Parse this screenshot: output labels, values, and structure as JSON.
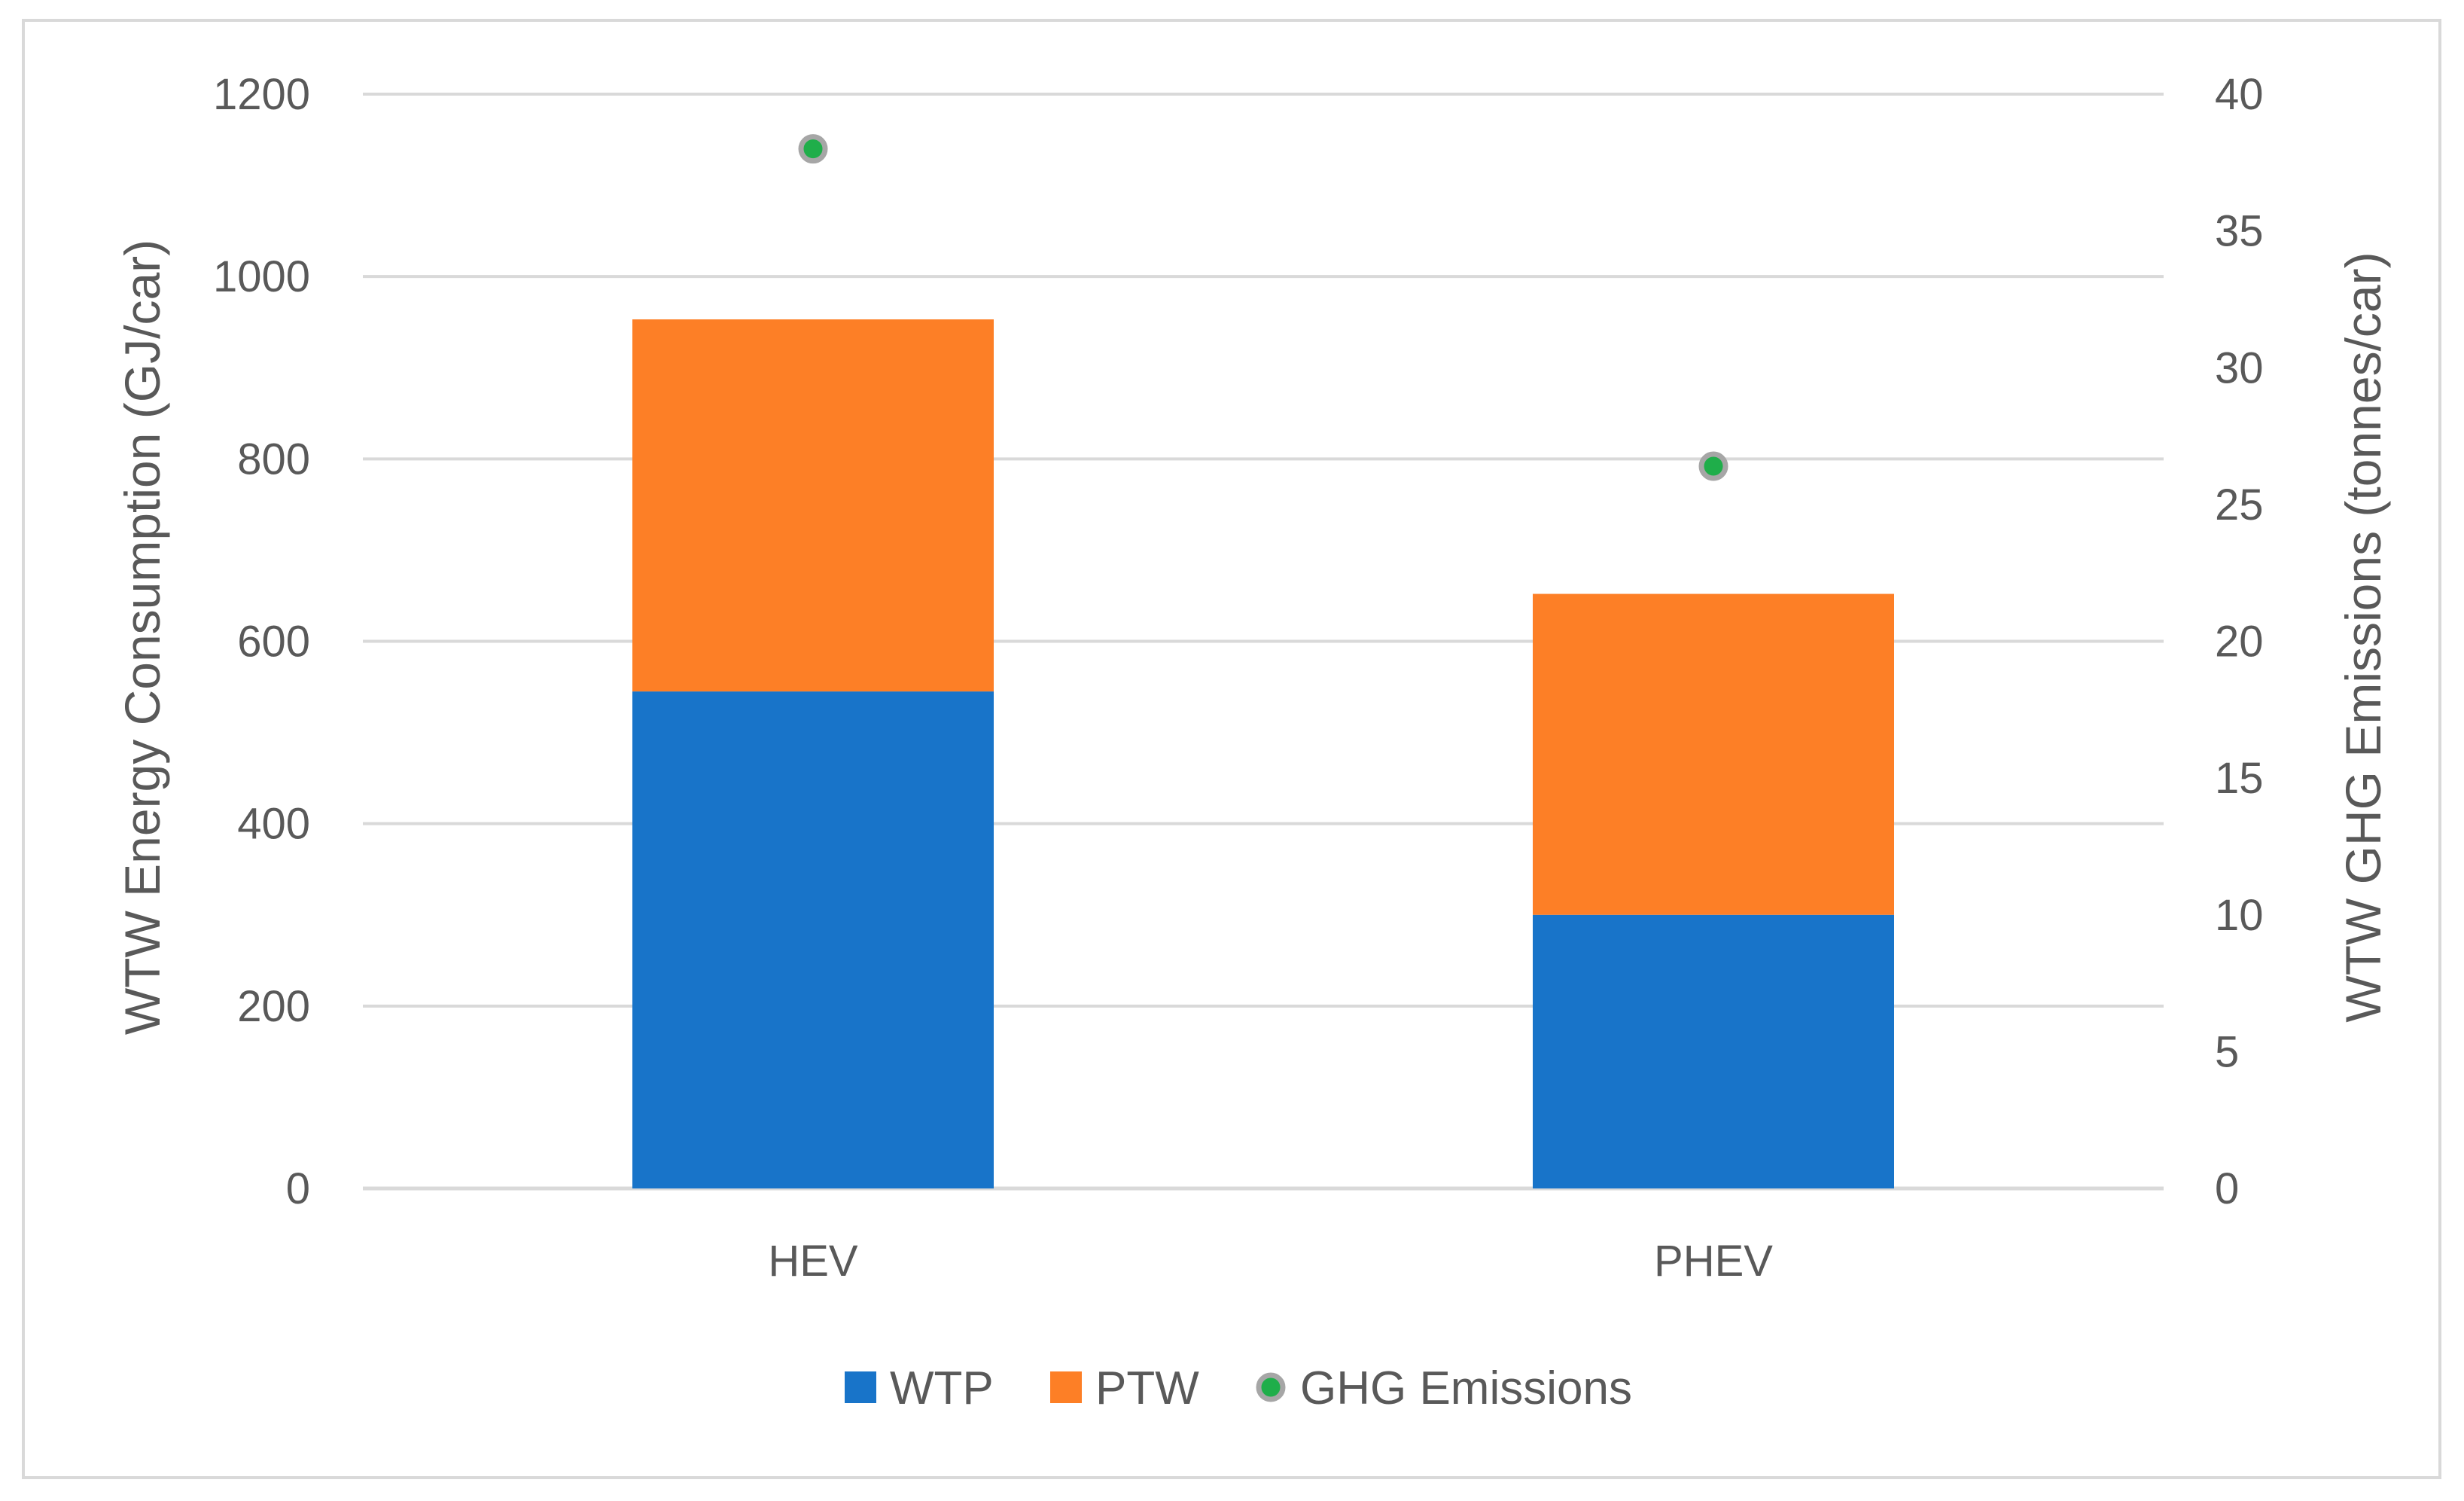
{
  "chart_data": {
    "type": "bar",
    "stacked": true,
    "categories": [
      "HEV",
      "PHEV"
    ],
    "series": [
      {
        "name": "WTP",
        "type": "bar",
        "axis": "left",
        "values": [
          545,
          300
        ],
        "color": "#1874c9"
      },
      {
        "name": "PTW",
        "type": "bar",
        "axis": "left",
        "values": [
          408,
          352
        ],
        "color": "#fd7f26"
      },
      {
        "name": "GHG Emissions",
        "type": "scatter",
        "axis": "right",
        "values": [
          38,
          26.4
        ],
        "color": "#1fae4a",
        "edge_color": "#a6a6a6"
      }
    ],
    "ylabel": "WTW Energy Consumption (GJ/car)",
    "y2label": "WTW GHG Emissions (tonnes/car)",
    "ylim": [
      0,
      1200
    ],
    "y2lim": [
      0,
      40
    ],
    "yticks": [
      "0",
      "200",
      "400",
      "600",
      "800",
      "1000",
      "1200"
    ],
    "y2ticks": [
      "0",
      "5",
      "10",
      "15",
      "20",
      "25",
      "30",
      "35",
      "40"
    ],
    "grid": true,
    "grid_color": "#d9d9d9",
    "legend_position": "bottom"
  }
}
